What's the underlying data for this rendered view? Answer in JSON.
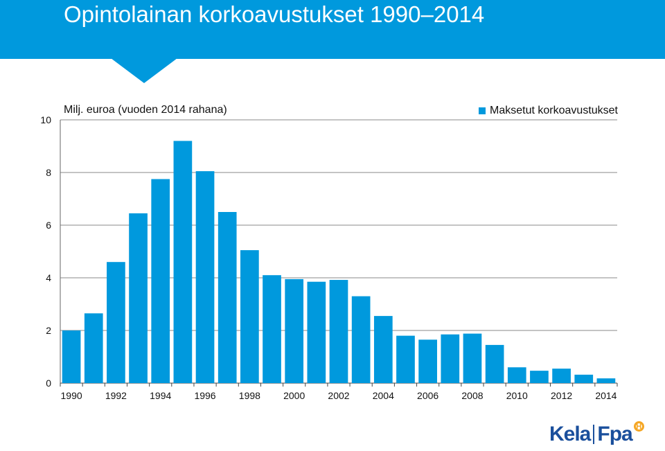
{
  "header": {
    "title": "Opintolainan korkoavustukset 1990–2014"
  },
  "colors": {
    "banner": "#0099dd",
    "bar": "#0099dd",
    "logo": "#1a4f9c",
    "logo_accent": "#f5a623"
  },
  "chart_data": {
    "type": "bar",
    "title": "Opintolainan korkoavustukset 1990–2014",
    "ylabel": "Milj. euroa (vuoden 2014 rahana)",
    "xlabel": "",
    "ylim": [
      0,
      10
    ],
    "yticks": [
      "0",
      "2",
      "4",
      "6",
      "8",
      "10"
    ],
    "grid": true,
    "legend_position": "top-right",
    "categories": [
      "1990",
      "1991",
      "1992",
      "1993",
      "1994",
      "1995",
      "1996",
      "1997",
      "1998",
      "1999",
      "2000",
      "2001",
      "2002",
      "2003",
      "2004",
      "2005",
      "2006",
      "2007",
      "2008",
      "2009",
      "2010",
      "2011",
      "2012",
      "2013",
      "2014"
    ],
    "xtick_labels": [
      "1990",
      "1992",
      "1994",
      "1996",
      "1998",
      "2000",
      "2002",
      "2004",
      "2006",
      "2008",
      "2010",
      "2012",
      "2014"
    ],
    "series": [
      {
        "name": "Maksetut korkoavustukset",
        "values": [
          2.0,
          2.65,
          4.6,
          6.45,
          7.75,
          9.2,
          8.05,
          6.5,
          5.05,
          4.1,
          3.95,
          3.85,
          3.92,
          3.3,
          2.55,
          1.8,
          1.65,
          1.85,
          1.88,
          1.45,
          0.6,
          0.47,
          0.55,
          0.32,
          0.18
        ]
      }
    ]
  },
  "logo": {
    "left": "Kela",
    "right": "Fpa",
    "badge": "H"
  }
}
